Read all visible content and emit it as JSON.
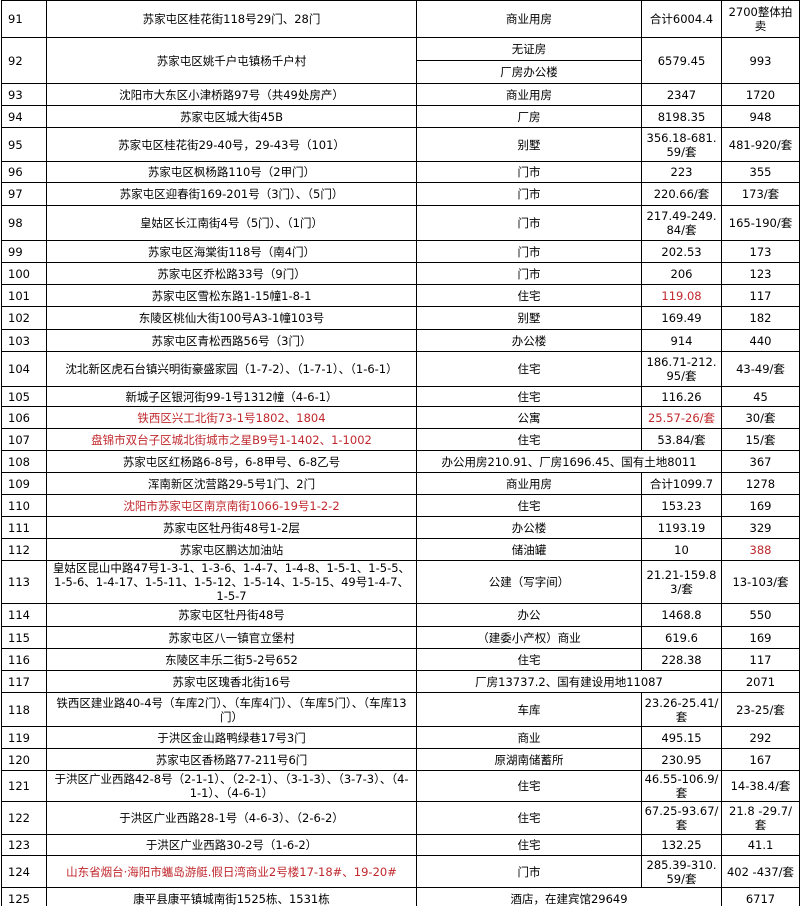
{
  "table": {
    "rows": [
      {
        "no": "91",
        "address": "苏家屯区桂花街118号29门、28门",
        "type": "商业用房",
        "area": "合计6004.4",
        "price": "2700整体拍卖"
      },
      {
        "no": "92",
        "address": "苏家屯区姚千户屯镇杨千户村",
        "type": [
          "无证房",
          "厂房办公楼"
        ],
        "area": "6579.45",
        "price": "993"
      },
      {
        "no": "93",
        "address": "沈阳市大东区小津桥路97号（共49处房产）",
        "type": "商业用房",
        "area": "2347",
        "price": "1720"
      },
      {
        "no": "94",
        "address": "苏家屯区城大街45B",
        "type": "厂房",
        "area": "8198.35",
        "price": "948"
      },
      {
        "no": "95",
        "address": "苏家屯区桂花街29-40号，29-43号（101）",
        "type": "别墅",
        "area": "356.18-681.59/套",
        "price": "481-920/套"
      },
      {
        "no": "96",
        "address": "苏家屯区枫杨路110号（2甲门）",
        "type": "门市",
        "area": "223",
        "price": "355"
      },
      {
        "no": "97",
        "address": "苏家屯区迎春街169-201号（3门）、（5门）",
        "type": "门市",
        "area": "220.66/套",
        "price": "173/套"
      },
      {
        "no": "98",
        "address": "皇姑区长江南街4号（5门）、（1门）",
        "type": "门市",
        "area": "217.49-249.84/套",
        "price": "165-190/套"
      },
      {
        "no": "99",
        "address": "苏家屯区海棠街118号（南4门）",
        "type": "门市",
        "area": "202.53",
        "price": "173"
      },
      {
        "no": "100",
        "address": "苏家屯区乔松路33号（9门）",
        "type": "门市",
        "area": "206",
        "price": "123"
      },
      {
        "no": "101",
        "address": "苏家屯区雪松东路1-15幢1-8-1",
        "type": "住宅",
        "area": "119.08",
        "price": "117",
        "red": [
          "area"
        ]
      },
      {
        "no": "102",
        "address": "东陵区桃仙大街100号A3-1幢103号",
        "type": "别墅",
        "area": "169.49",
        "price": "182"
      },
      {
        "no": "103",
        "address": "苏家屯区青松西路56号（3门）",
        "type": "办公楼",
        "area": "914",
        "price": "440"
      },
      {
        "no": "104",
        "address": "沈北新区虎石台镇兴明街豪盛家园（1-7-2）、（1-7-1）、（1-6-1）",
        "type": "住宅",
        "area": "186.71-212.95/套",
        "price": "43-49/套"
      },
      {
        "no": "105",
        "address": "新城子区银河街99-1号1312幢（4-6-1）",
        "type": "住宅",
        "area": "116.26",
        "price": "45"
      },
      {
        "no": "106",
        "address": "铁西区兴工北街73-1号1802、1804",
        "type": "公寓",
        "area": "25.57-26/套",
        "price": "30/套",
        "red": [
          "address",
          "area"
        ]
      },
      {
        "no": "107",
        "address": "盘锦市双台子区城北街城市之星B9号1-1402、1-1002",
        "type": "住宅",
        "area": "53.84/套",
        "price": "15/套",
        "red": [
          "address"
        ]
      },
      {
        "no": "108",
        "address": "苏家屯区红杨路6-8号，6-8甲号、6-8乙号",
        "type_area": "办公用房210.91、厂房1696.45、国有土地8011",
        "price": "367"
      },
      {
        "no": "109",
        "address": "浑南新区沈营路29-5号1门、2门",
        "type": "商业用房",
        "area": "合计1099.7",
        "price": "1278"
      },
      {
        "no": "110",
        "address": "沈阳市苏家屯区南京南街1066-19号1-2-2",
        "type": "住宅",
        "area": "153.23",
        "price": "169",
        "red": [
          "address"
        ]
      },
      {
        "no": "111",
        "address": "苏家屯区牡丹街48号1-2层",
        "type": "办公楼",
        "area": "1193.19",
        "price": "329"
      },
      {
        "no": "112",
        "address": "苏家屯区鹏达加油站",
        "type": "储油罐",
        "area": "10",
        "price": "388",
        "red": [
          "price"
        ]
      },
      {
        "no": "113",
        "address": "皇姑区昆山中路47号1-3-1、1-3-6、1-4-7、1-4-8、1-5-1、1-5-5、1-5-6、1-4-17、1-5-11、1-5-12、1-5-14、1-5-15、49号1-4-7、1-5-7",
        "type": "公建（写字间）",
        "area": "21.21-159.83/套",
        "price": "13-103/套"
      },
      {
        "no": "114",
        "address": "苏家屯区牡丹街48号",
        "type": "办公",
        "area": "1468.8",
        "price": "550"
      },
      {
        "no": "115",
        "address": "苏家屯区八一镇官立堡村",
        "type": "（建委小产权）商业",
        "area": "619.6",
        "price": "169"
      },
      {
        "no": "116",
        "address": "东陵区丰乐二街5-2号652",
        "type": "住宅",
        "area": "228.38",
        "price": "117"
      },
      {
        "no": "117",
        "address": "苏家屯区瑰香北街16号",
        "type_area": "厂房13737.2、国有建设用地11087",
        "price": "2071"
      },
      {
        "no": "118",
        "address": "铁西区建业路40-4号（车库2门）、（车库4门）、（车库5门）、（车库13门）",
        "type": "车库",
        "area": "23.26-25.41/套",
        "price": "23-25/套"
      },
      {
        "no": "119",
        "address": "于洪区金山路鸭绿巷17号3门",
        "type": "商业",
        "area": "495.15",
        "price": "292"
      },
      {
        "no": "120",
        "address": "苏家屯区香杨路77-211号6门",
        "type": "原湖南储蓄所",
        "area": "230.95",
        "price": "167"
      },
      {
        "no": "121",
        "address": "于洪区广业西路42-8号（2-1-1）、（2-2-1）、（3-1-3）、（3-7-3）、（4-1-1）、（4-6-1）",
        "type": "住宅",
        "area": "46.55-106.9/套",
        "price": "14-38.4/套"
      },
      {
        "no": "122",
        "address": "于洪区广业西路28-1号（4-6-3）、（2-6-2）",
        "type": "住宅",
        "area": "67.25-93.67/套",
        "price": "21.8 -29.7/套"
      },
      {
        "no": "123",
        "address": "于洪区广业西路30-2号（1-6-2）",
        "type": "住宅",
        "area": "132.25",
        "price": "41.1"
      },
      {
        "no": "124",
        "address": "山东省烟台·海阳市蠵岛游艇.假日湾商业2号楼17-18#、19-20#",
        "type": "门市",
        "area": "285.39-310.59/套",
        "price": "402 -437/套",
        "red": [
          "address"
        ]
      },
      {
        "no": "125",
        "address": "康平县康平镇城南街1525栋、1531栋",
        "type_area": "酒店，在建宾馆29649",
        "price": "6717"
      }
    ]
  }
}
